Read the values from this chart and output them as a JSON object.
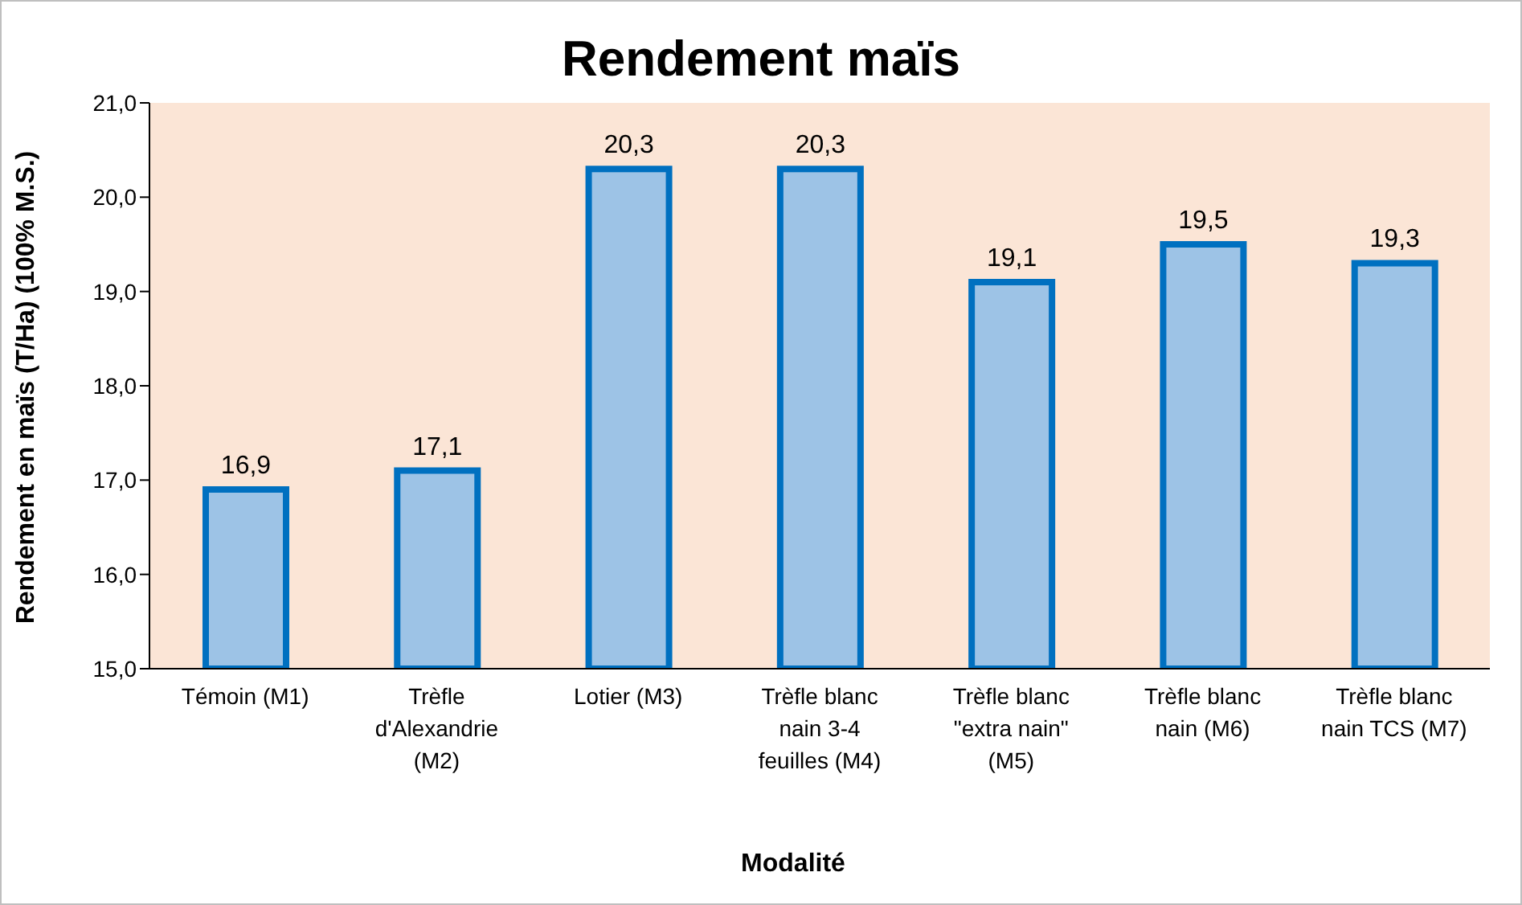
{
  "chart_data": {
    "type": "bar",
    "title": "Rendement maïs",
    "xlabel": "Modalité",
    "ylabel": "Rendement en maïs (T/Ha) (100% M.S.)",
    "categories": [
      "Témoin (M1)",
      "Trèfle d'Alexandrie (M2)",
      "Lotier (M3)",
      "Trèfle blanc nain 3-4 feuilles (M4)",
      "Trèfle blanc \"extra nain\" (M5)",
      "Trèfle blanc nain (M6)",
      "Trèfle blanc nain TCS (M7)"
    ],
    "values": [
      16.9,
      17.1,
      20.3,
      20.3,
      19.1,
      19.5,
      19.3
    ],
    "value_labels": [
      "16,9",
      "17,1",
      "20,3",
      "20,3",
      "19,1",
      "19,5",
      "19,3"
    ],
    "color": "#9dc3e6",
    "ylim": [
      15,
      21
    ],
    "yticks": [
      {
        "value": 15,
        "label": "15,0"
      },
      {
        "value": 16,
        "label": "16,0"
      },
      {
        "value": 17,
        "label": "17,0"
      },
      {
        "value": 18,
        "label": "18,0"
      },
      {
        "value": 19,
        "label": "19,0"
      },
      {
        "value": 20,
        "label": "20,0"
      },
      {
        "value": 21,
        "label": "21,0"
      }
    ],
    "legend": false
  }
}
